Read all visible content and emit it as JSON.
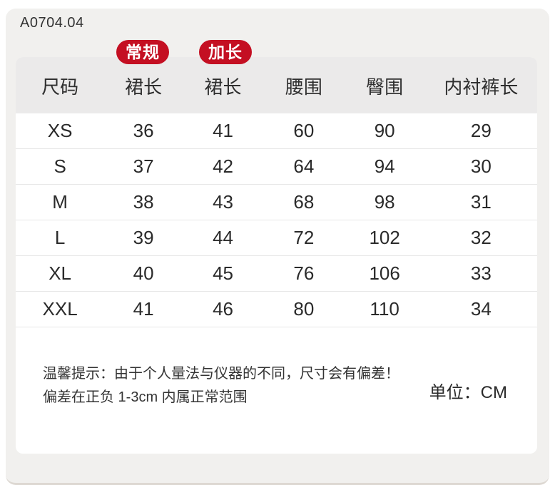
{
  "product_code": "A0704.04",
  "badges": {
    "regular": "常规",
    "extended": "加长"
  },
  "table": {
    "headers": [
      "尺码",
      "裙长",
      "裙长",
      "腰围",
      "臀围",
      "内衬裤长"
    ]
  },
  "chart_data": {
    "type": "table",
    "title": "A0704.04 尺码表",
    "columns": [
      "尺码",
      "裙长(常规)",
      "裙长(加长)",
      "腰围",
      "臀围",
      "内衬裤长"
    ],
    "rows": [
      [
        "XS",
        36,
        41,
        60,
        90,
        29
      ],
      [
        "S",
        37,
        42,
        64,
        94,
        30
      ],
      [
        "M",
        38,
        43,
        68,
        98,
        31
      ],
      [
        "L",
        39,
        44,
        72,
        102,
        32
      ],
      [
        "XL",
        40,
        45,
        76,
        106,
        33
      ],
      [
        "XXL",
        41,
        46,
        80,
        110,
        34
      ]
    ],
    "unit": "CM"
  },
  "notes": {
    "line1": "温馨提示：由于个人量法与仪器的不同，尺寸会有偏差！",
    "line2": "偏差在正负 1-3cm 内属正常范围"
  },
  "unit_label": "单位：CM",
  "colors": {
    "badge_red": "#c40f22",
    "panel_gray": "#f1f0ee",
    "header_gray": "#ebeaea",
    "card_white": "#ffffff"
  }
}
